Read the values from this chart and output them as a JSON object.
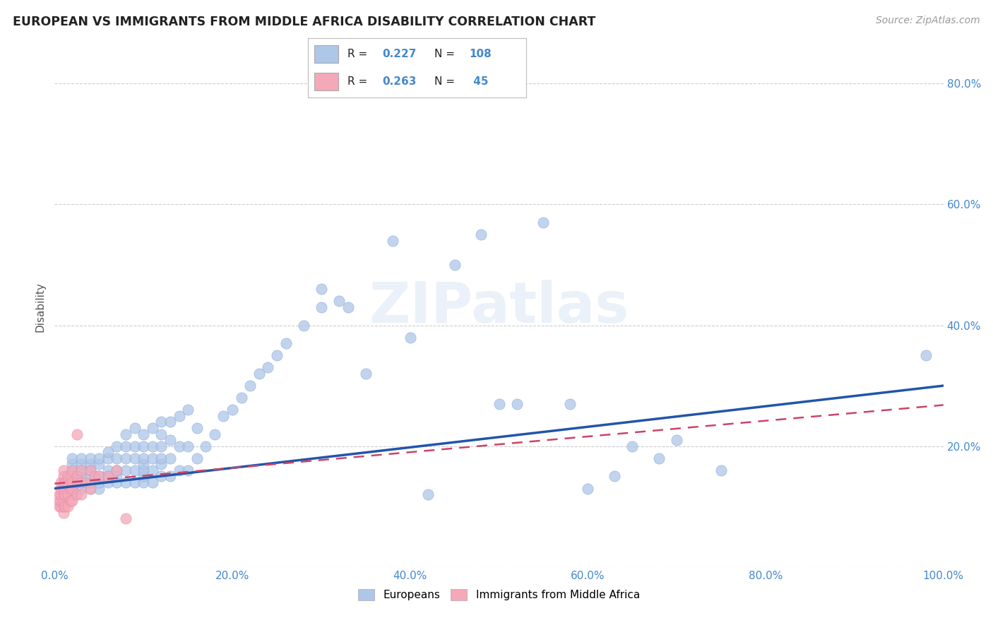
{
  "title": "EUROPEAN VS IMMIGRANTS FROM MIDDLE AFRICA DISABILITY CORRELATION CHART",
  "source": "Source: ZipAtlas.com",
  "ylabel": "Disability",
  "watermark": "ZIPatlas",
  "legend_blue_R": "0.227",
  "legend_blue_N": "108",
  "legend_pink_R": "0.263",
  "legend_pink_N": "45",
  "blue_color": "#aec6e8",
  "pink_color": "#f4a8b8",
  "trend_blue": "#2255aa",
  "trend_pink": "#cc4466",
  "axis_tick_color": "#4488cc",
  "title_color": "#222222",
  "background_color": "#ffffff",
  "grid_color": "#cccccc",
  "xlim": [
    0.0,
    1.0
  ],
  "ylim": [
    0.0,
    0.86
  ],
  "blue_points_x": [
    0.01,
    0.01,
    0.02,
    0.02,
    0.02,
    0.02,
    0.02,
    0.02,
    0.02,
    0.03,
    0.03,
    0.03,
    0.03,
    0.03,
    0.03,
    0.04,
    0.04,
    0.04,
    0.04,
    0.04,
    0.04,
    0.05,
    0.05,
    0.05,
    0.05,
    0.05,
    0.06,
    0.06,
    0.06,
    0.06,
    0.06,
    0.07,
    0.07,
    0.07,
    0.07,
    0.07,
    0.08,
    0.08,
    0.08,
    0.08,
    0.08,
    0.09,
    0.09,
    0.09,
    0.09,
    0.09,
    0.1,
    0.1,
    0.1,
    0.1,
    0.1,
    0.1,
    0.1,
    0.11,
    0.11,
    0.11,
    0.11,
    0.11,
    0.12,
    0.12,
    0.12,
    0.12,
    0.12,
    0.12,
    0.13,
    0.13,
    0.13,
    0.13,
    0.14,
    0.14,
    0.14,
    0.15,
    0.15,
    0.15,
    0.16,
    0.16,
    0.17,
    0.18,
    0.19,
    0.2,
    0.21,
    0.22,
    0.23,
    0.24,
    0.25,
    0.26,
    0.28,
    0.3,
    0.3,
    0.32,
    0.33,
    0.35,
    0.38,
    0.4,
    0.42,
    0.45,
    0.48,
    0.5,
    0.52,
    0.55,
    0.58,
    0.6,
    0.63,
    0.65,
    0.68,
    0.7,
    0.75,
    0.98
  ],
  "blue_points_y": [
    0.13,
    0.14,
    0.12,
    0.13,
    0.14,
    0.15,
    0.16,
    0.17,
    0.18,
    0.13,
    0.14,
    0.15,
    0.16,
    0.17,
    0.18,
    0.13,
    0.14,
    0.15,
    0.16,
    0.17,
    0.18,
    0.13,
    0.14,
    0.15,
    0.17,
    0.18,
    0.14,
    0.15,
    0.16,
    0.18,
    0.19,
    0.14,
    0.15,
    0.16,
    0.18,
    0.2,
    0.14,
    0.16,
    0.18,
    0.2,
    0.22,
    0.14,
    0.16,
    0.18,
    0.2,
    0.23,
    0.14,
    0.15,
    0.16,
    0.17,
    0.18,
    0.2,
    0.22,
    0.14,
    0.16,
    0.18,
    0.2,
    0.23,
    0.15,
    0.17,
    0.18,
    0.2,
    0.22,
    0.24,
    0.15,
    0.18,
    0.21,
    0.24,
    0.16,
    0.2,
    0.25,
    0.16,
    0.2,
    0.26,
    0.18,
    0.23,
    0.2,
    0.22,
    0.25,
    0.26,
    0.28,
    0.3,
    0.32,
    0.33,
    0.35,
    0.37,
    0.4,
    0.43,
    0.46,
    0.44,
    0.43,
    0.32,
    0.54,
    0.38,
    0.12,
    0.5,
    0.55,
    0.27,
    0.27,
    0.57,
    0.27,
    0.13,
    0.15,
    0.2,
    0.18,
    0.21,
    0.16,
    0.35
  ],
  "pink_points_x": [
    0.005,
    0.005,
    0.005,
    0.007,
    0.007,
    0.007,
    0.007,
    0.007,
    0.01,
    0.01,
    0.01,
    0.01,
    0.01,
    0.01,
    0.01,
    0.01,
    0.012,
    0.012,
    0.012,
    0.015,
    0.015,
    0.015,
    0.015,
    0.018,
    0.018,
    0.018,
    0.02,
    0.02,
    0.02,
    0.02,
    0.025,
    0.025,
    0.025,
    0.025,
    0.03,
    0.03,
    0.03,
    0.035,
    0.04,
    0.04,
    0.045,
    0.05,
    0.06,
    0.07,
    0.08
  ],
  "pink_points_y": [
    0.1,
    0.11,
    0.12,
    0.1,
    0.11,
    0.12,
    0.13,
    0.14,
    0.09,
    0.1,
    0.11,
    0.12,
    0.13,
    0.14,
    0.15,
    0.16,
    0.1,
    0.12,
    0.14,
    0.1,
    0.12,
    0.14,
    0.15,
    0.11,
    0.13,
    0.15,
    0.11,
    0.13,
    0.14,
    0.16,
    0.12,
    0.14,
    0.15,
    0.22,
    0.12,
    0.14,
    0.16,
    0.14,
    0.13,
    0.16,
    0.15,
    0.15,
    0.15,
    0.16,
    0.08
  ]
}
